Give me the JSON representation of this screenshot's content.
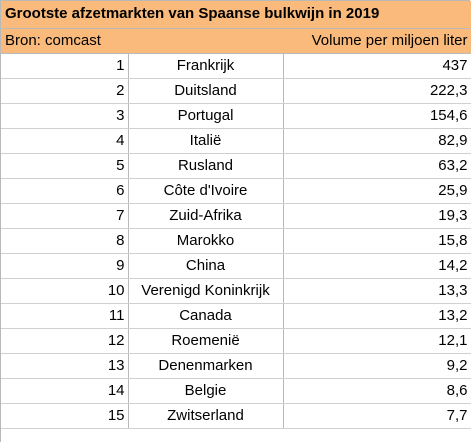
{
  "title": "Grootste afzetmarkten van Spaanse bulkwijn in 2019",
  "header": {
    "source": "Bron: comcast",
    "country": "",
    "volume": "Volume per miljoen liter"
  },
  "rows": [
    {
      "rank": "1",
      "country": "Frankrijk",
      "volume": "437"
    },
    {
      "rank": "2",
      "country": "Duitsland",
      "volume": "222,3"
    },
    {
      "rank": "3",
      "country": "Portugal",
      "volume": "154,6"
    },
    {
      "rank": "4",
      "country": "Italië",
      "volume": "82,9"
    },
    {
      "rank": "5",
      "country": "Rusland",
      "volume": "63,2"
    },
    {
      "rank": "6",
      "country": "Côte d'Ivoire",
      "volume": "25,9"
    },
    {
      "rank": "7",
      "country": "Zuid-Afrika",
      "volume": "19,3"
    },
    {
      "rank": "8",
      "country": "Marokko",
      "volume": "15,8"
    },
    {
      "rank": "9",
      "country": "China",
      "volume": "14,2"
    },
    {
      "rank": "10",
      "country": "Verenigd Koninkrijk",
      "volume": "13,3"
    },
    {
      "rank": "11",
      "country": "Canada",
      "volume": "13,2"
    },
    {
      "rank": "12",
      "country": "Roemenië",
      "volume": "12,1"
    },
    {
      "rank": "13",
      "country": "Denenmarken",
      "volume": "9,2"
    },
    {
      "rank": "14",
      "country": "Belgie",
      "volume": "8,6"
    },
    {
      "rank": "15",
      "country": "Zwitserland",
      "volume": "7,7"
    }
  ],
  "colors": {
    "header_fill": "#f9ba7b",
    "grid": "#d0d0d0"
  }
}
